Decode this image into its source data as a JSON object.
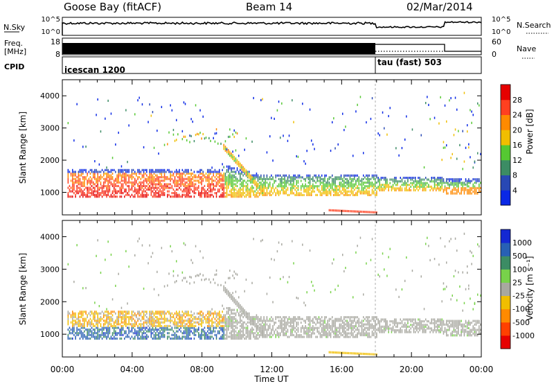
{
  "header": {
    "station": "Goose Bay (fitACF)",
    "beam": "Beam 14",
    "date": "02/Mar/2014"
  },
  "noise_panel": {
    "left_label": "N.Sky",
    "left_ticks": [
      "10^5",
      "10^0"
    ],
    "right_ticks": [
      "10^5",
      "10^0"
    ],
    "right_label": "N.Search"
  },
  "freq_panel": {
    "left_label_1": "Freq.",
    "left_label_2": "[MHz]",
    "left_ticks": [
      "18",
      "8"
    ],
    "right_ticks": [
      "60",
      "0"
    ],
    "right_label": "Nave"
  },
  "cpid_panel": {
    "label": "CPID",
    "modes": [
      {
        "name": "icescan 1200",
        "start_hour": 0,
        "end_hour": 18
      },
      {
        "name": "tau (fast) 503",
        "start_hour": 18,
        "end_hour": 24
      }
    ]
  },
  "x_axis": {
    "label": "Time UT",
    "ticks": [
      "00:00",
      "04:00",
      "08:00",
      "12:00",
      "16:00",
      "20:00",
      "00:00"
    ]
  },
  "colors": {
    "power": [
      "#0a28e6",
      "#2848b4",
      "#3c8c64",
      "#55c832",
      "#f0be00",
      "#ff8a00",
      "#ff4020",
      "#e60000"
    ],
    "velocity": [
      "#e60000",
      "#ff4000",
      "#ff8a00",
      "#f0be00",
      "#a8a8a0",
      "#78d24a",
      "#3c8c64",
      "#2860b4",
      "#1428d2"
    ]
  },
  "chart_data": [
    {
      "type": "heatmap",
      "ylabel": "Slant Range [km]",
      "ylim": [
        300,
        4500
      ],
      "xlim": [
        0,
        24
      ],
      "yticks": [
        "1000",
        "2000",
        "3000",
        "4000"
      ],
      "colorbar_label": "Power [dB]",
      "colorbar_ticks": [
        "4",
        "8",
        "12",
        "16",
        "20",
        "24",
        "28"
      ],
      "colorbar_range": [
        0,
        32
      ]
    },
    {
      "type": "heatmap",
      "ylabel": "Slant Range [km]",
      "ylim": [
        300,
        4500
      ],
      "xlim": [
        0,
        24
      ],
      "yticks": [
        "1000",
        "2000",
        "3000",
        "4000"
      ],
      "colorbar_label": "Velocity [m s⁻¹]",
      "colorbar_ticks": [
        "1000",
        "500",
        "100",
        "25",
        "-25",
        "-100",
        "-500",
        "-1000"
      ]
    }
  ]
}
